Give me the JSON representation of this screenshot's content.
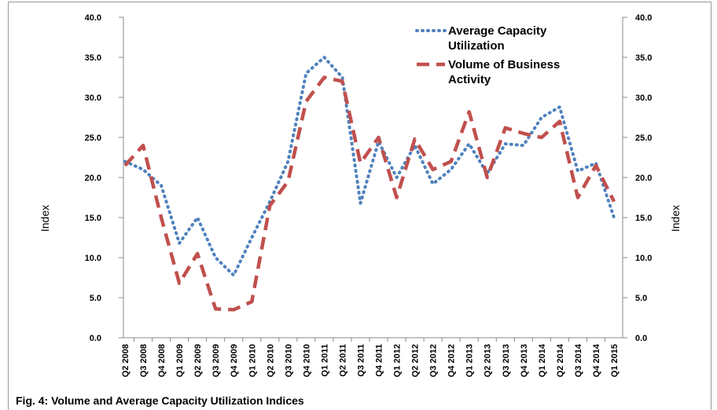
{
  "chart_data": {
    "type": "line",
    "title": "Fig. 4:  Volume and Average Capacity Utilization Indices",
    "y_label": "Index",
    "y2_label": "Index",
    "categories": [
      "Q2 2008",
      "Q3 2008",
      "Q4 2008",
      "Q1 2009",
      "Q2 2009",
      "Q3 2009",
      "Q4 2009",
      "Q1 2010",
      "Q2 2010",
      "Q3 2010",
      "Q4 2010",
      "Q1 2011",
      "Q2 2011",
      "Q3 2011",
      "Q4 2011",
      "Q1 2012",
      "Q2 2012",
      "Q3 2012",
      "Q4 2012",
      "Q1 2013",
      "Q2 2013",
      "Q3 2013",
      "Q4 2013",
      "Q1 2014",
      "Q2 2014",
      "Q3 2014",
      "Q4 2014",
      "Q1 2015"
    ],
    "series": [
      {
        "name": "Average Capacity Utilization",
        "color": "#4f81bd",
        "style": "dotted",
        "values": [
          22.0,
          21.0,
          19.0,
          11.8,
          15.0,
          10.0,
          7.8,
          12.5,
          17.0,
          22.0,
          33.0,
          35.0,
          32.5,
          16.8,
          24.5,
          20.0,
          24.0,
          19.2,
          21.0,
          24.2,
          20.5,
          24.2,
          24.0,
          27.5,
          28.8,
          20.8,
          21.8,
          15.0
        ]
      },
      {
        "name": "Volume of Business Activity",
        "color": "#c0504d",
        "style": "dashed",
        "values": [
          21.5,
          24.0,
          15.0,
          6.8,
          10.5,
          3.6,
          3.5,
          4.5,
          16.5,
          19.5,
          29.5,
          32.5,
          32.0,
          21.8,
          25.0,
          17.5,
          24.8,
          21.0,
          22.0,
          28.2,
          20.0,
          26.2,
          25.5,
          25.0,
          27.0,
          17.5,
          21.5,
          17.0
        ]
      }
    ],
    "ylim": [
      0,
      40
    ],
    "yticks": [
      {
        "value": 0,
        "label": "0.0"
      },
      {
        "value": 5,
        "label": "5.0"
      },
      {
        "value": 10,
        "label": "10.0"
      },
      {
        "value": 15,
        "label": "15.0"
      },
      {
        "value": 20,
        "label": "20.0"
      },
      {
        "value": 25,
        "label": "25.0"
      },
      {
        "value": 30,
        "label": "30.0"
      },
      {
        "value": 35,
        "label": "35.0"
      },
      {
        "value": 40,
        "label": "40.0"
      }
    ],
    "y2lim": [
      0,
      40
    ],
    "y2ticks": [
      {
        "value": 0,
        "label": "0.0"
      },
      {
        "value": 5,
        "label": "5.0"
      },
      {
        "value": 10,
        "label": "10.0"
      },
      {
        "value": 15,
        "label": "15.0"
      },
      {
        "value": 20,
        "label": "20.0"
      },
      {
        "value": 25,
        "label": "25.0"
      },
      {
        "value": 30,
        "label": "30.0"
      },
      {
        "value": 35,
        "label": "35.0"
      },
      {
        "value": 40,
        "label": "40.0"
      }
    ],
    "grid": false,
    "legend": "top-right"
  }
}
